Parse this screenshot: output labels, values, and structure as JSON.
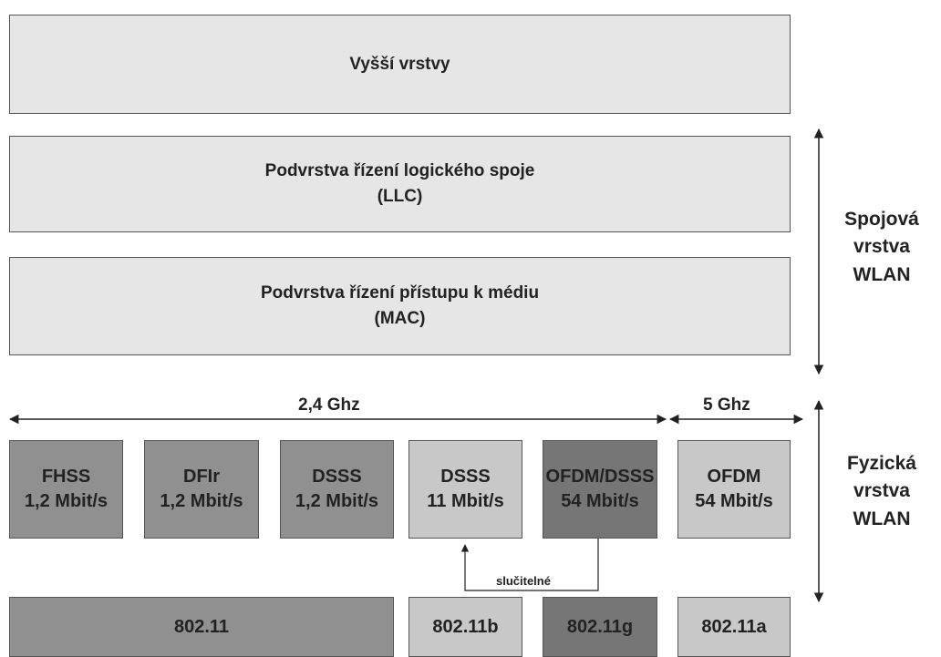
{
  "layers": {
    "upper": "Vyšší vrstvy",
    "llc": [
      "Podvrstva řízení logického spoje",
      "(LLC)"
    ],
    "mac": [
      "Podvrstva řízení přístupu k médiu",
      "(MAC)"
    ]
  },
  "side_labels": {
    "data_link": [
      "Spojová",
      "vrstva",
      "WLAN"
    ],
    "physical": [
      "Fyzická",
      "vrstva",
      "WLAN"
    ]
  },
  "frequencies": {
    "band_24": "2,4 Ghz",
    "band_5": "5 Ghz"
  },
  "physical_methods": [
    {
      "name": "FHSS",
      "rate": "1,2 Mbit/s"
    },
    {
      "name": "DFIr",
      "rate": "1,2 Mbit/s"
    },
    {
      "name": "DSSS",
      "rate": "1,2 Mbit/s"
    },
    {
      "name": "DSSS",
      "rate": "11 Mbit/s"
    },
    {
      "name": "OFDM/DSSS",
      "rate": "54 Mbit/s"
    },
    {
      "name": "OFDM",
      "rate": "54 Mbit/s"
    }
  ],
  "compatibility_note": "slučitelné",
  "standards": [
    "802.11",
    "802.11b",
    "802.11g",
    "802.11a"
  ],
  "colors": {
    "light": "#e6e6e6",
    "pale": "#c8c8c8",
    "mid": "#909090",
    "dark": "#767676",
    "border": "#555555"
  }
}
